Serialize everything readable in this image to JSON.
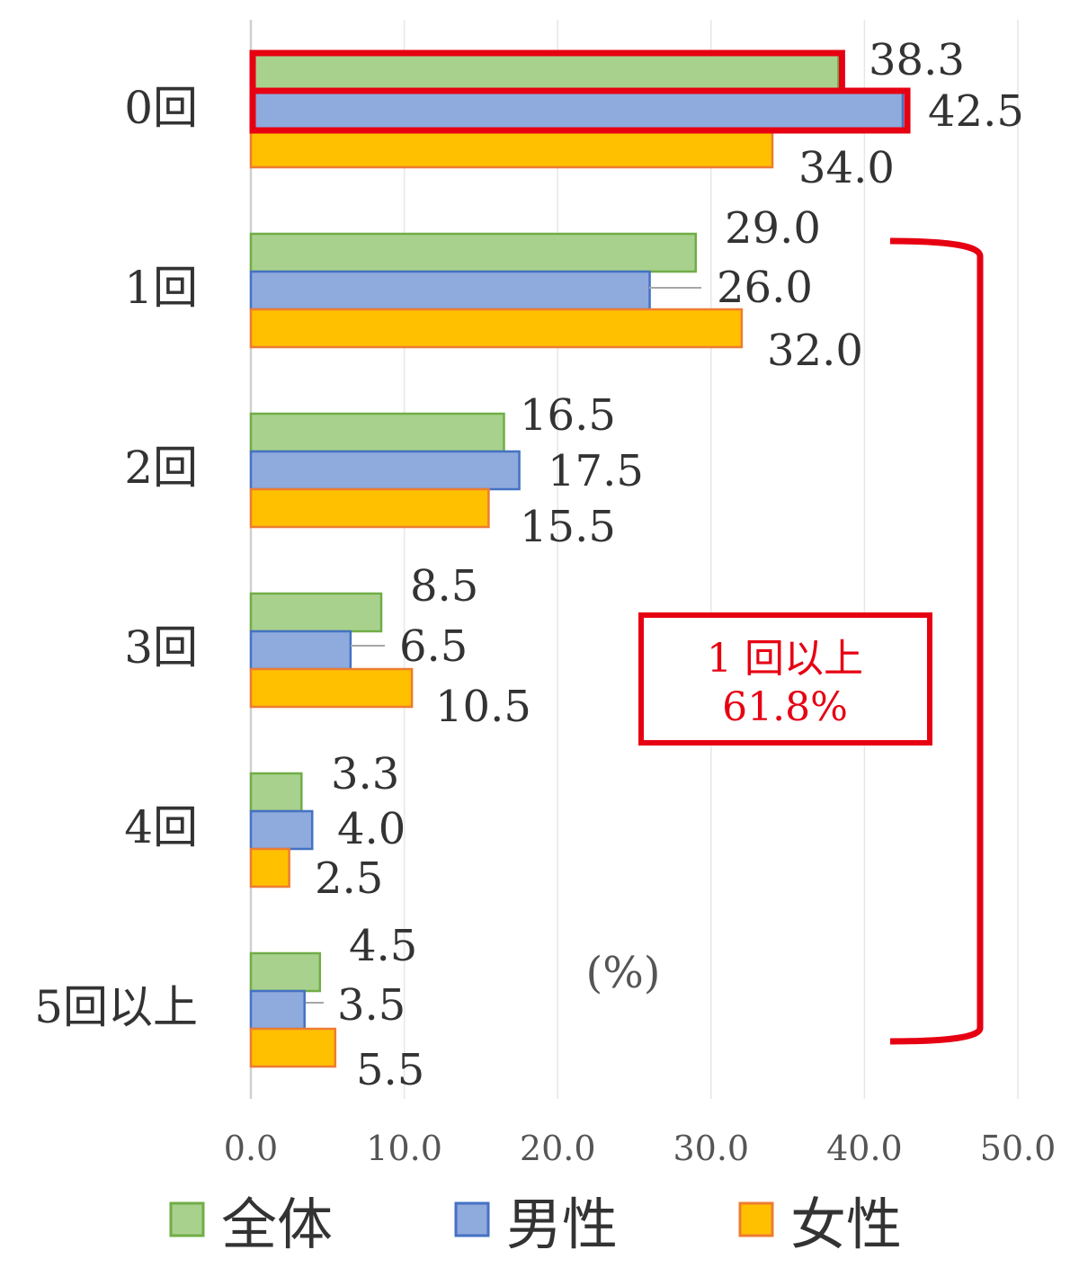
{
  "chart_data": {
    "type": "bar",
    "orientation": "horizontal",
    "categories": [
      "0回",
      "1回",
      "2回",
      "3回",
      "4回",
      "5回以上"
    ],
    "series": [
      {
        "name": "全体",
        "values": [
          38.3,
          29.0,
          16.5,
          8.5,
          3.3,
          4.5
        ],
        "color": "#a9d18e",
        "border": "#70ad47"
      },
      {
        "name": "男性",
        "values": [
          42.5,
          26.0,
          17.5,
          6.5,
          4.0,
          3.5
        ],
        "color": "#8faadc",
        "border": "#4472c4"
      },
      {
        "name": "女性",
        "values": [
          34.0,
          32.0,
          15.5,
          10.5,
          2.5,
          5.5
        ],
        "color": "#ffc000",
        "border": "#ed7d31"
      }
    ],
    "xlim": [
      0,
      50
    ],
    "xticks": [
      "0.0",
      "10.0",
      "20.0",
      "30.0",
      "40.0",
      "50.0"
    ],
    "unit_label": "(%)",
    "grid": true,
    "legend_position": "bottom",
    "annotation": {
      "line1": "1 回以上",
      "line2": "61.8%",
      "color": "#e60012"
    },
    "highlight_color": "#e60012"
  }
}
